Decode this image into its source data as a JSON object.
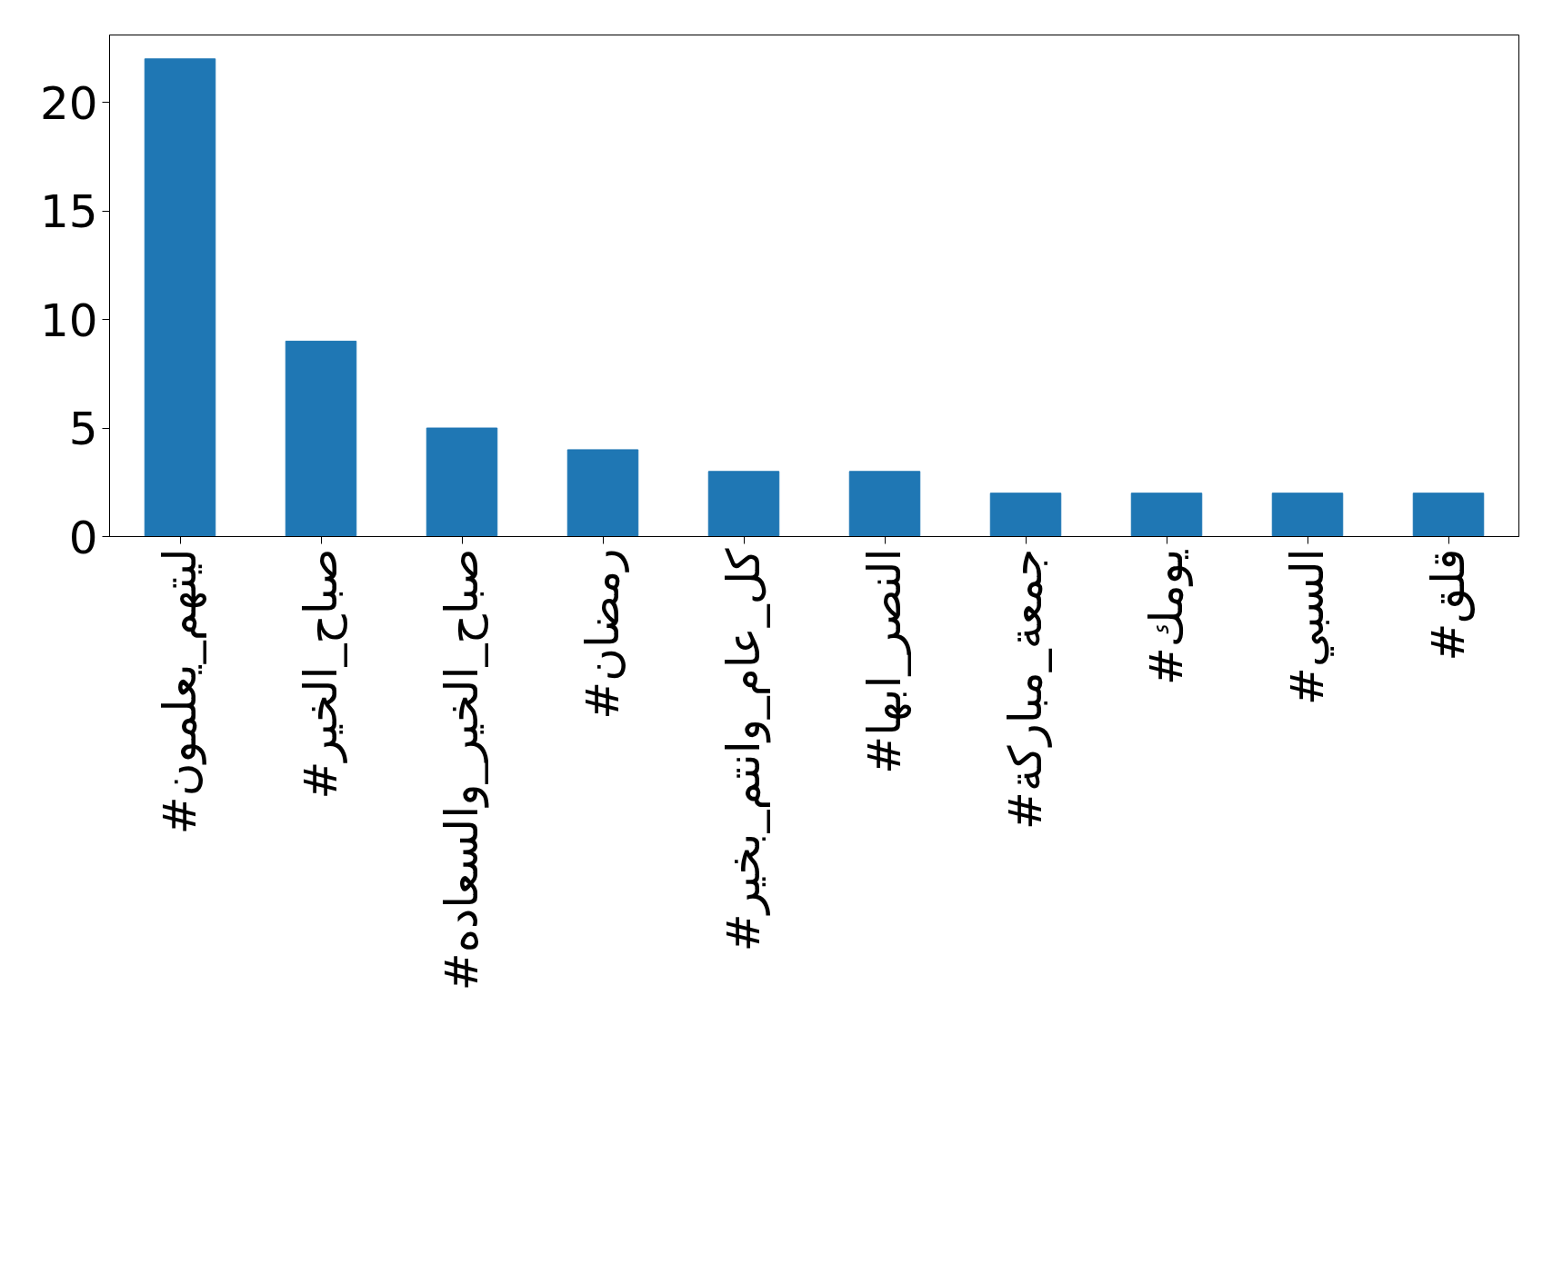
{
  "chart_data": {
    "type": "bar",
    "categories": [
      "#ليتهم_يعلمون",
      "#صباح_الخير",
      "#صباح_الخير_والسعاده",
      "#رمضان",
      "#كل_عام_وانتم_بخير",
      "#النصر_ابها",
      "#جمعة_مباركة",
      "#يومك",
      "#السبي",
      "#قلق"
    ],
    "values": [
      22,
      9,
      5,
      4,
      3,
      3,
      2,
      2,
      2,
      2
    ],
    "color": "#1f77b4",
    "ylim": [
      0,
      23.1
    ],
    "yticks": [
      0,
      5,
      10,
      15,
      20
    ],
    "grid": false
  }
}
